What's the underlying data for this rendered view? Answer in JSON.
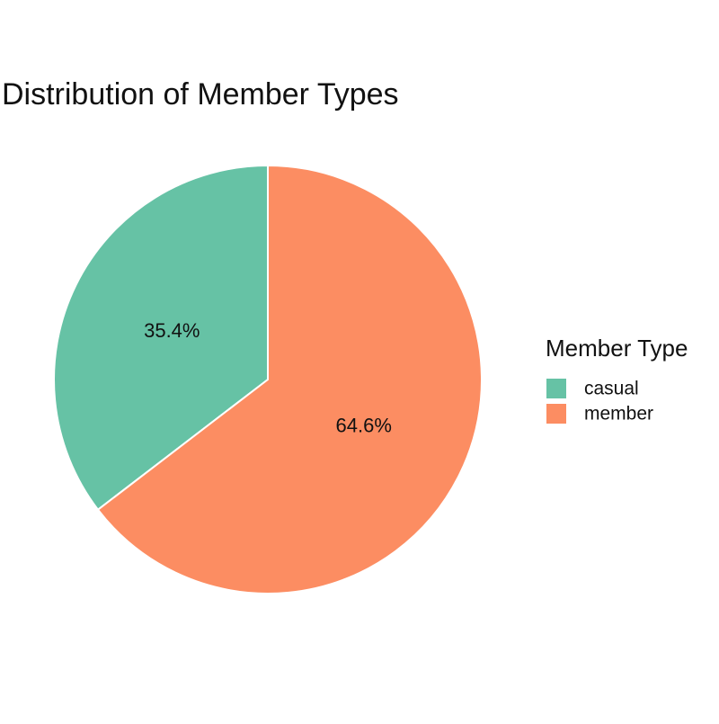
{
  "chart_data": {
    "type": "pie",
    "title": "Distribution of Member Types",
    "legend_title": "Member Type",
    "legend_position": "right",
    "start_angle": "12 o'clock",
    "direction": "counterclockwise",
    "slices": [
      {
        "label": "casual",
        "value": 35.4,
        "value_label": "35.4%",
        "color": "#66c2a5"
      },
      {
        "label": "member",
        "value": 64.6,
        "value_label": "64.6%",
        "color": "#fc8d62"
      }
    ]
  }
}
